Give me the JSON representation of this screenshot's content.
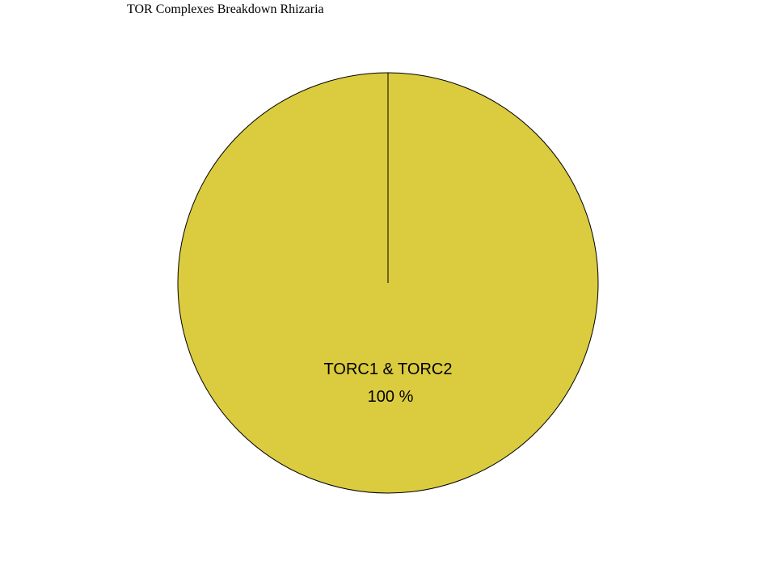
{
  "chart_data": {
    "type": "pie",
    "title": "TOR Complexes Breakdown Rhizaria",
    "slices": [
      {
        "label": "TORC1 & TORC2",
        "value": 100,
        "percent_label": "100 %",
        "color": "#DBCB3F"
      }
    ],
    "start_angle": "top",
    "direction": "clockwise",
    "legend": "none"
  }
}
